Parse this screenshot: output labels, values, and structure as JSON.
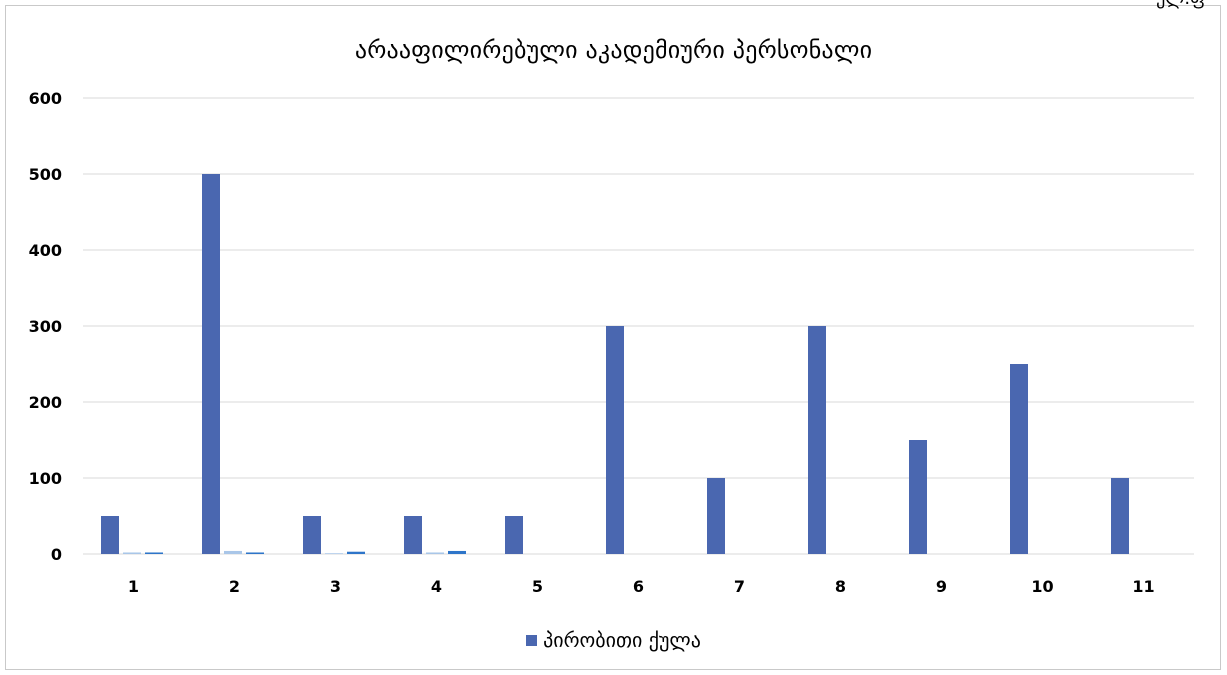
{
  "corner_text": "ელ.ფ",
  "chart_data": {
    "type": "bar",
    "title": "არააფილირებული აკადემიური პერსონალი",
    "xlabel": "",
    "ylabel": "",
    "categories": [
      "1",
      "2",
      "3",
      "4",
      "5",
      "6",
      "7",
      "8",
      "9",
      "10",
      "11"
    ],
    "ylim": [
      0,
      600
    ],
    "yticks": [
      "0",
      "100",
      "200",
      "300",
      "400",
      "500",
      "600"
    ],
    "grid": true,
    "legend_position": "bottom",
    "series": [
      {
        "name": "პირობითი ქულა",
        "color": "#4a67b0",
        "values": [
          50,
          500,
          50,
          50,
          50,
          300,
          100,
          300,
          150,
          250,
          100
        ]
      },
      {
        "name": "",
        "color": "#a9c6e8",
        "values": [
          2,
          4,
          1,
          2,
          0,
          0,
          0,
          0,
          0,
          0,
          0
        ]
      },
      {
        "name": "",
        "color": "#2e75c9",
        "values": [
          2,
          2,
          3,
          4,
          0,
          0,
          0,
          0,
          0,
          0,
          0
        ]
      }
    ]
  }
}
